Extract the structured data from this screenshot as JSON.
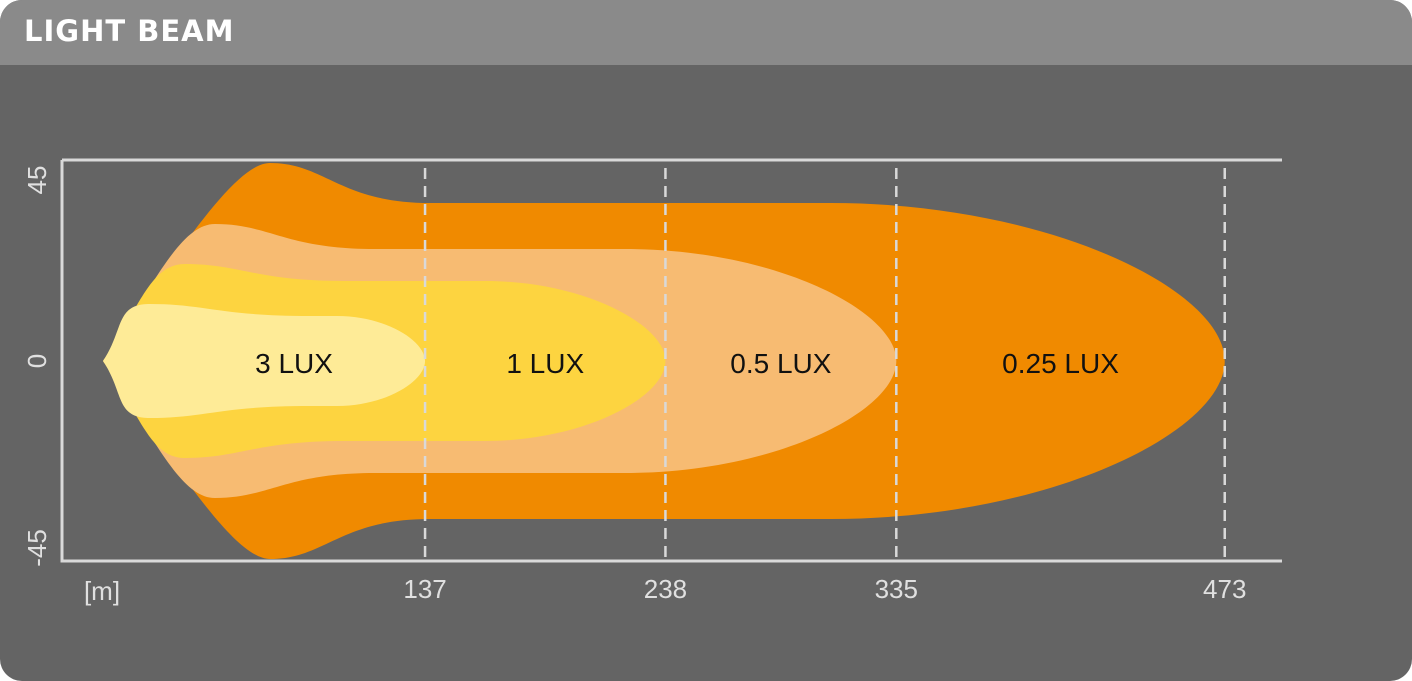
{
  "header": {
    "title": "LIGHT BEAM"
  },
  "chart_data": {
    "type": "area",
    "title": "LIGHT BEAM",
    "xlabel": "[m]",
    "x_ticks": [
      137,
      238,
      335,
      473
    ],
    "y_ticks": [
      45,
      0,
      -45
    ],
    "ylim": [
      -45,
      45
    ],
    "series": [
      {
        "name": "0.25 LUX",
        "reach": 473,
        "color": "#f08a00"
      },
      {
        "name": "0.5 LUX",
        "reach": 335,
        "color": "#f7bb72"
      },
      {
        "name": "1 LUX",
        "reach": 238,
        "color": "#fdd440"
      },
      {
        "name": "3 LUX",
        "reach": 137,
        "color": "#feeb97"
      }
    ],
    "colors": {
      "background": "#646464",
      "header": "#8a8a8a",
      "axis": "#d9d9d9"
    }
  }
}
